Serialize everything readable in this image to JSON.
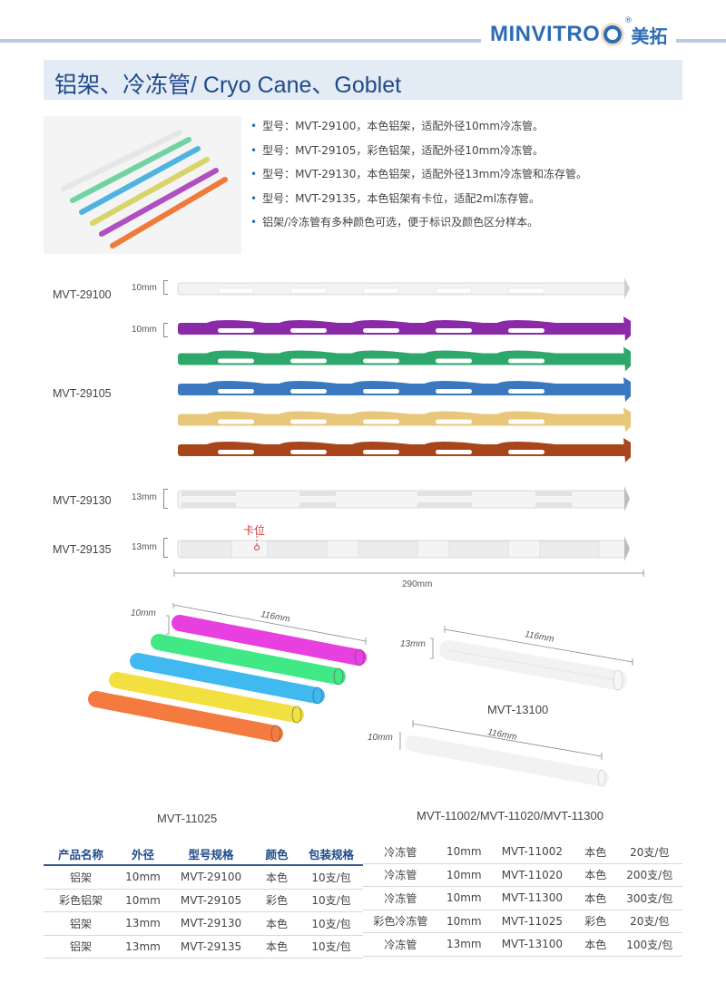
{
  "header": {
    "brand": "MINVITRO",
    "brand_cn": "美拓",
    "registered": "®",
    "brand_color": "#2d6cb5"
  },
  "title": "铝架、冷冻管/ Cryo Cane、Goblet",
  "bullets": [
    "型号：MVT-29100，本色铝架，适配外径10mm冷冻管。",
    "型号：MVT-29105，彩色铝架，适配外径10mm冷冻管。",
    "型号：MVT-29130，本色铝架，适配外径13mm冷冻管和冻存管。",
    "型号：MVT-29135，本色铝架有卡位，适配2ml冻存管。",
    "铝架/冷冻管有多种颜色可选，便于标识及颜色区分样本。"
  ],
  "photo": {
    "cane_colors": [
      "#e6e6e6",
      "#6fd3a3",
      "#4fb3e0",
      "#d8d36a",
      "#b04fc0",
      "#f07a3a"
    ]
  },
  "canes": {
    "models": [
      {
        "label": "MVT-29100",
        "dim": "10mm",
        "colors": [
          "#f2f2f2"
        ]
      },
      {
        "label": "MVT-29105",
        "dim": "10mm",
        "colors": [
          "#8a2aa8",
          "#2ea86a",
          "#3a78c0",
          "#e9c77a",
          "#a8451a"
        ]
      },
      {
        "label": "MVT-29130",
        "dim": "13mm",
        "colors": [
          "#f2f2f2"
        ]
      },
      {
        "label": "MVT-29135",
        "dim": "13mm",
        "colors": [
          "#f2f2f2"
        ]
      }
    ],
    "notch_label": "卡位",
    "length_label": "290mm"
  },
  "tubes": {
    "colored": {
      "caption": "MVT-11025",
      "dim": "10mm",
      "length": "116mm",
      "colors": [
        "#e840e0",
        "#40e886",
        "#40b8f0",
        "#f2e040",
        "#f47a40"
      ]
    },
    "clear13": {
      "caption": "MVT-13100",
      "dim": "13mm",
      "length": "116mm"
    },
    "clear10": {
      "caption": "MVT-11002/MVT-11020/MVT-11300",
      "dim": "10mm",
      "length": "116mm"
    }
  },
  "table_left": {
    "headers": [
      "产品名称",
      "外径",
      "型号规格",
      "颜色",
      "包装规格"
    ],
    "rows": [
      [
        "铝架",
        "10mm",
        "MVT-29100",
        "本色",
        "10支/包"
      ],
      [
        "彩色铝架",
        "10mm",
        "MVT-29105",
        "彩色",
        "10支/包"
      ],
      [
        "铝架",
        "13mm",
        "MVT-29130",
        "本色",
        "10支/包"
      ],
      [
        "铝架",
        "13mm",
        "MVT-29135",
        "本色",
        "10支/包"
      ]
    ]
  },
  "table_right": {
    "rows": [
      [
        "冷冻管",
        "10mm",
        "MVT-11002",
        "本色",
        "20支/包"
      ],
      [
        "冷冻管",
        "10mm",
        "MVT-11020",
        "本色",
        "200支/包"
      ],
      [
        "冷冻管",
        "10mm",
        "MVT-11300",
        "本色",
        "300支/包"
      ],
      [
        "彩色冷冻管",
        "10mm",
        "MVT-11025",
        "彩色",
        "20支/包"
      ],
      [
        "冷冻管",
        "13mm",
        "MVT-13100",
        "本色",
        "100支/包"
      ]
    ]
  }
}
